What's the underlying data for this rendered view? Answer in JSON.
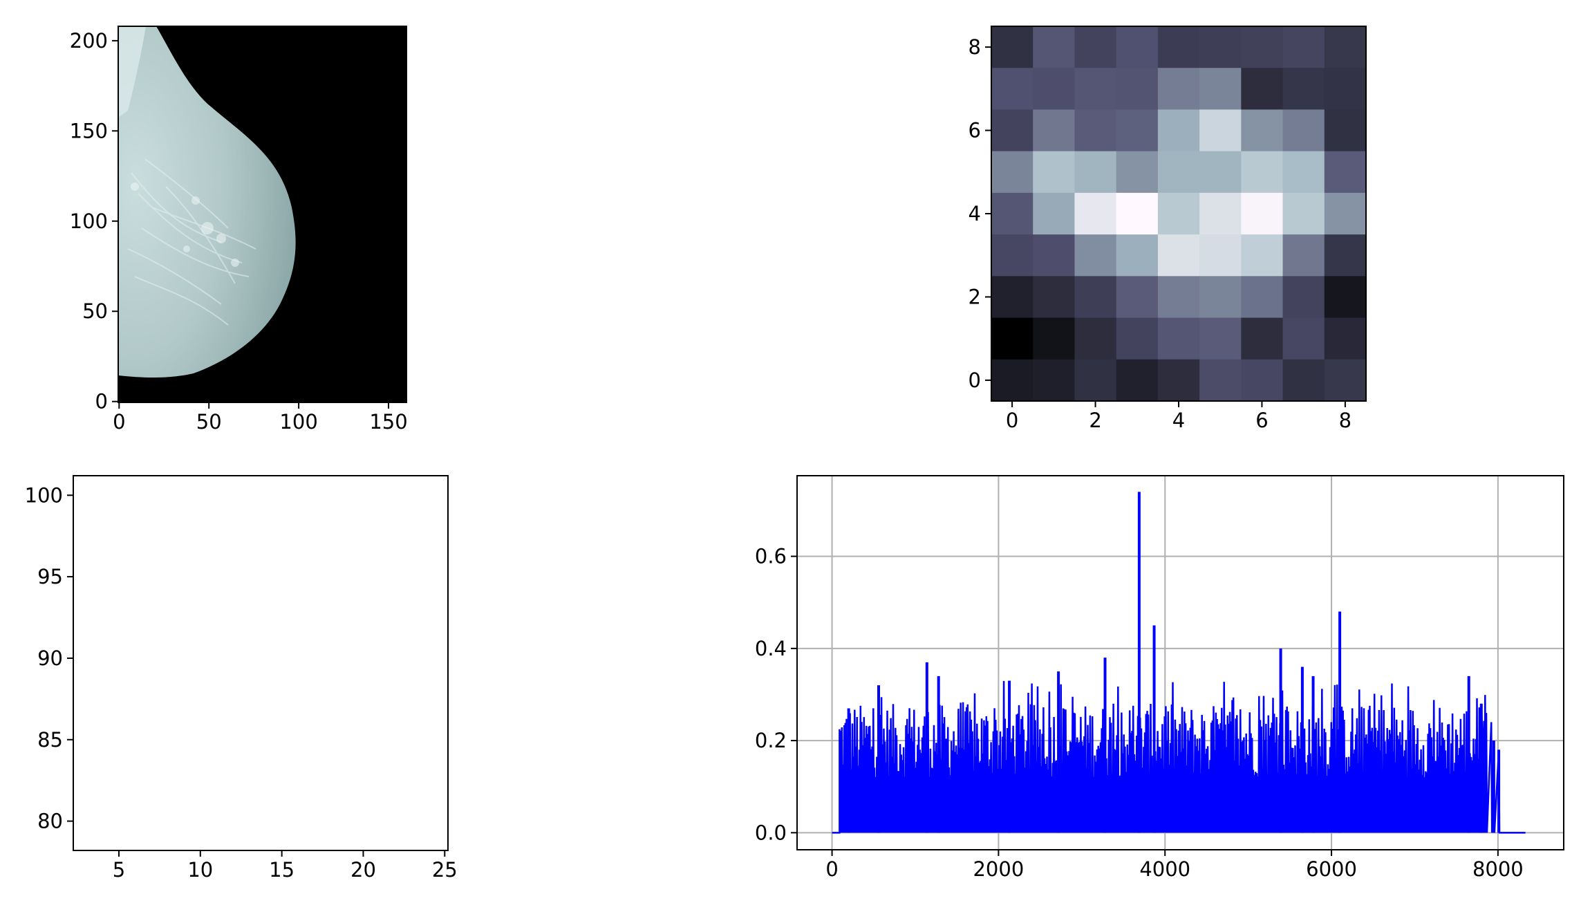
{
  "chart_data": [
    {
      "type": "image",
      "description_key": "mammogram",
      "x_ticks": [
        0,
        50,
        100,
        150
      ],
      "y_ticks": [
        0,
        50,
        100,
        150,
        200
      ],
      "xlim": [
        -0.5,
        160
      ],
      "ylim": [
        208,
        -0.5
      ],
      "colormap": "bone",
      "background_color": "#000000"
    },
    {
      "type": "heatmap",
      "x_ticks": [
        0,
        2,
        4,
        6,
        8
      ],
      "y_ticks": [
        0,
        2,
        4,
        6,
        8
      ],
      "xlim": [
        -0.5,
        8.5
      ],
      "ylim": [
        8.5,
        -0.5
      ],
      "colormap": "bone",
      "values": [
        [
          0.22,
          0.38,
          0.3,
          0.36,
          0.27,
          0.28,
          0.29,
          0.31,
          0.25
        ],
        [
          0.36,
          0.35,
          0.38,
          0.37,
          0.52,
          0.55,
          0.2,
          0.24,
          0.23
        ],
        [
          0.3,
          0.5,
          0.4,
          0.42,
          0.7,
          0.85,
          0.6,
          0.52,
          0.22
        ],
        [
          0.55,
          0.77,
          0.72,
          0.6,
          0.72,
          0.72,
          0.8,
          0.75,
          0.4
        ],
        [
          0.38,
          0.68,
          0.93,
          1.0,
          0.8,
          0.9,
          0.98,
          0.8,
          0.6
        ],
        [
          0.32,
          0.35,
          0.58,
          0.7,
          0.9,
          0.88,
          0.82,
          0.5,
          0.24
        ],
        [
          0.15,
          0.2,
          0.28,
          0.4,
          0.52,
          0.55,
          0.48,
          0.3,
          0.1
        ],
        [
          0.0,
          0.08,
          0.2,
          0.3,
          0.38,
          0.4,
          0.2,
          0.32,
          0.18
        ],
        [
          0.12,
          0.14,
          0.22,
          0.15,
          0.2,
          0.34,
          0.32,
          0.22,
          0.25
        ]
      ]
    },
    {
      "type": "heatmap",
      "x_ticks": [
        5,
        10,
        15,
        20,
        25
      ],
      "y_ticks": [
        80,
        85,
        90,
        95,
        100
      ],
      "xlim": [
        2.2,
        25.2
      ],
      "ylim": [
        101.2,
        78.2
      ],
      "colormap": "bone",
      "highlight_rect": {
        "x0": 6,
        "y0": 84,
        "x1": 14,
        "y1": 92,
        "color": "#ff0000"
      }
    },
    {
      "type": "line",
      "x_ticks": [
        0,
        2000,
        4000,
        6000,
        8000
      ],
      "y_ticks": [
        "0.0",
        "0.2",
        "0.4",
        "0.6"
      ],
      "xlim": [
        -420,
        8790
      ],
      "ylim": [
        -0.037,
        0.775
      ],
      "grid": true,
      "color": "#0000ff",
      "data_range_x": [
        0,
        8330
      ],
      "nonzero_range_x": [
        90,
        8050
      ],
      "spikes": [
        {
          "x": 3690,
          "y": 0.74
        },
        {
          "x": 6100,
          "y": 0.48
        },
        {
          "x": 3870,
          "y": 0.45
        },
        {
          "x": 5390,
          "y": 0.4
        },
        {
          "x": 3280,
          "y": 0.38
        },
        {
          "x": 1140,
          "y": 0.37
        },
        {
          "x": 5650,
          "y": 0.36
        },
        {
          "x": 2720,
          "y": 0.35
        },
        {
          "x": 1280,
          "y": 0.34
        },
        {
          "x": 7650,
          "y": 0.34
        },
        {
          "x": 5780,
          "y": 0.34
        },
        {
          "x": 2130,
          "y": 0.33
        },
        {
          "x": 560,
          "y": 0.32
        },
        {
          "x": 200,
          "y": 0.27
        },
        {
          "x": 7800,
          "y": 0.28
        },
        {
          "x": 7950,
          "y": 0.2
        },
        {
          "x": 8010,
          "y": 0.18
        }
      ]
    }
  ]
}
